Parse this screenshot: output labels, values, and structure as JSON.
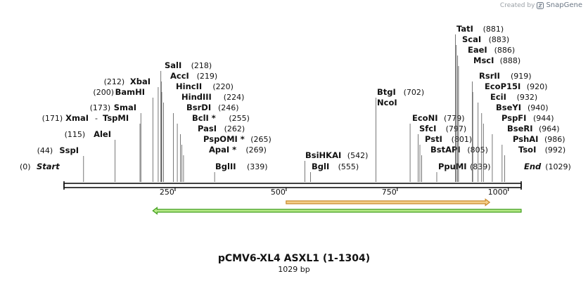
{
  "credit": {
    "created_by": "Created by",
    "brand": "SnapGene",
    "logo_icon": "snapgene-logo-icon"
  },
  "plasmid": {
    "name": "pCMV6-XL4 ASXL1 (1-1304)",
    "length_label": "1029 bp",
    "length": 1029
  },
  "axis": {
    "ticks": [
      250,
      500,
      750,
      1000
    ]
  },
  "features": [
    {
      "name": "orange-feature-arrow",
      "start": 500,
      "end": 958,
      "direction": "forward",
      "fill": "#f6d08a",
      "stroke": "#c7892b"
    },
    {
      "name": "green-feature-arrow",
      "start": 200,
      "end": 1029,
      "direction": "reverse",
      "fill": "#b9ea8a",
      "stroke": "#3f9e1a"
    }
  ],
  "sites": [
    {
      "name": "Start",
      "pos": 0,
      "label": "(0)",
      "italic": true,
      "star": false
    },
    {
      "name": "SspI",
      "pos": 44,
      "label": "(44)",
      "star": false
    },
    {
      "name": "AleI",
      "pos": 115,
      "label": "(115)",
      "star": false
    },
    {
      "name": "XmaI",
      "pos": 171,
      "label": "(171)",
      "star": false
    },
    {
      "name": "TspMI",
      "pos": 171,
      "label": "-",
      "star": false
    },
    {
      "name": "SmaI",
      "pos": 173,
      "label": "(173)",
      "star": false
    },
    {
      "name": "BamHI",
      "pos": 200,
      "label": "(200)",
      "star": false
    },
    {
      "name": "XbaI",
      "pos": 212,
      "label": "(212)",
      "star": false
    },
    {
      "name": "SalI",
      "pos": 218,
      "label": "(218)",
      "star": false
    },
    {
      "name": "AccI",
      "pos": 219,
      "label": "(219)",
      "star": false
    },
    {
      "name": "HincII",
      "pos": 220,
      "label": "(220)",
      "star": false
    },
    {
      "name": "HindIII",
      "pos": 224,
      "label": "(224)",
      "star": false
    },
    {
      "name": "BsrDI",
      "pos": 246,
      "label": "(246)",
      "star": false
    },
    {
      "name": "BclI",
      "pos": 255,
      "label": "(255)",
      "star": true
    },
    {
      "name": "PasI",
      "pos": 262,
      "label": "(262)",
      "star": false
    },
    {
      "name": "PspOMI",
      "pos": 265,
      "label": "(265)",
      "star": true
    },
    {
      "name": "ApaI",
      "pos": 269,
      "label": "(269)",
      "star": true
    },
    {
      "name": "BglII",
      "pos": 339,
      "label": "(339)",
      "star": false
    },
    {
      "name": "BsiHKAI",
      "pos": 542,
      "label": "(542)",
      "star": false
    },
    {
      "name": "BglI",
      "pos": 555,
      "label": "(555)",
      "star": false
    },
    {
      "name": "BtgI",
      "pos": 702,
      "label": "(702)",
      "star": false
    },
    {
      "name": "NcoI",
      "pos": 702,
      "label": "",
      "star": false
    },
    {
      "name": "EcoNI",
      "pos": 779,
      "label": "(779)",
      "star": false
    },
    {
      "name": "SfcI",
      "pos": 797,
      "label": "(797)",
      "star": false
    },
    {
      "name": "PstI",
      "pos": 801,
      "label": "(801)",
      "star": false
    },
    {
      "name": "BstAPI",
      "pos": 805,
      "label": "(805)",
      "star": false
    },
    {
      "name": "PpuMI",
      "pos": 839,
      "label": "(839)",
      "star": false
    },
    {
      "name": "TatI",
      "pos": 881,
      "label": "(881)",
      "star": false
    },
    {
      "name": "ScaI",
      "pos": 883,
      "label": "(883)",
      "star": false
    },
    {
      "name": "EaeI",
      "pos": 886,
      "label": "(886)",
      "star": false
    },
    {
      "name": "MscI",
      "pos": 888,
      "label": "(888)",
      "star": false
    },
    {
      "name": "RsrII",
      "pos": 919,
      "label": "(919)",
      "star": false
    },
    {
      "name": "EcoP15I",
      "pos": 920,
      "label": "(920)",
      "star": false
    },
    {
      "name": "EciI",
      "pos": 932,
      "label": "(932)",
      "star": false
    },
    {
      "name": "BseYI",
      "pos": 940,
      "label": "(940)",
      "star": false
    },
    {
      "name": "PspFI",
      "pos": 944,
      "label": "(944)",
      "star": false
    },
    {
      "name": "BseRI",
      "pos": 964,
      "label": "(964)",
      "star": false
    },
    {
      "name": "PshAI",
      "pos": 986,
      "label": "(986)",
      "star": false
    },
    {
      "name": "TsoI",
      "pos": 992,
      "label": "(992)",
      "star": false
    },
    {
      "name": "End",
      "pos": 1029,
      "label": "(1029)",
      "italic": true,
      "star": false
    }
  ]
}
